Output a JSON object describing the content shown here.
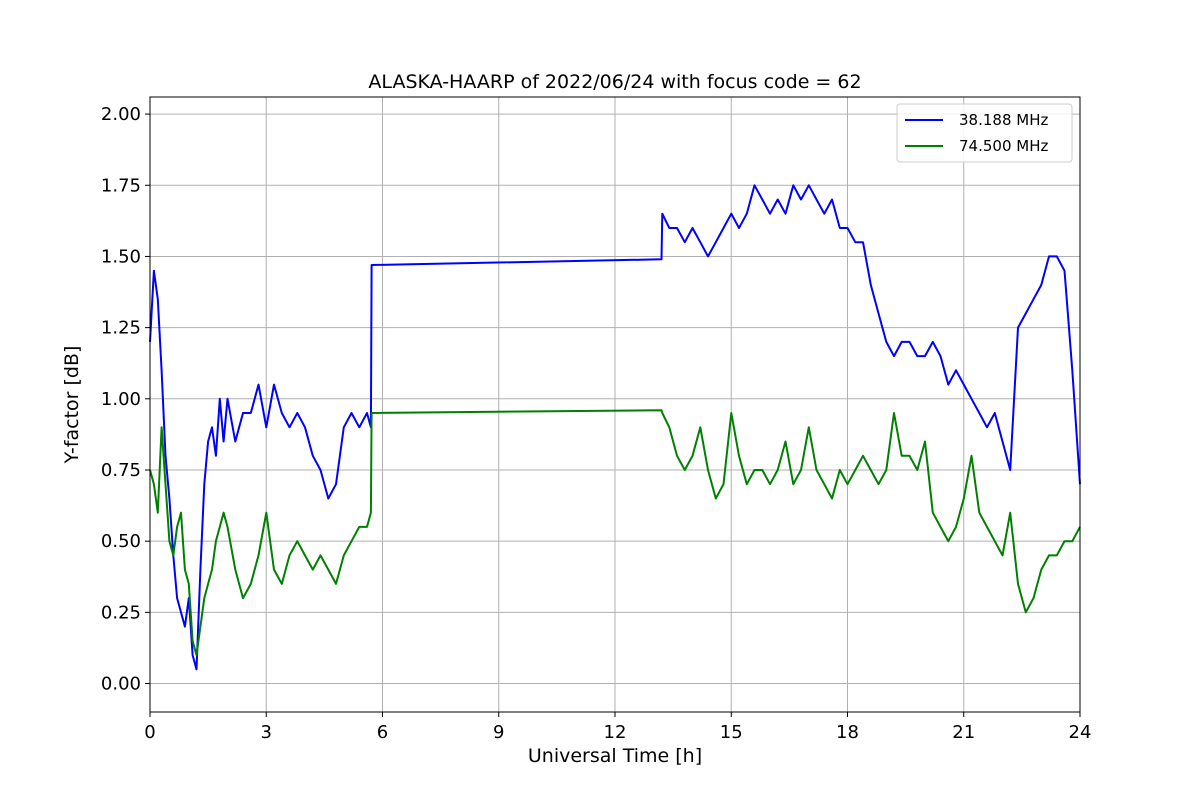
{
  "chart_data": {
    "type": "line",
    "title": "ALASKA-HAARP of 2022/06/24 with focus code = 62",
    "xlabel": "Universal Time [h]",
    "ylabel": "Y-factor [dB]",
    "xlim": [
      0,
      24
    ],
    "ylim": [
      -0.1,
      2.06
    ],
    "x_ticks": [
      0,
      3,
      6,
      9,
      12,
      15,
      18,
      21,
      24
    ],
    "x_tick_labels": [
      "0",
      "3",
      "6",
      "9",
      "12",
      "15",
      "18",
      "21",
      "24"
    ],
    "y_ticks": [
      0.0,
      0.25,
      0.5,
      0.75,
      1.0,
      1.25,
      1.5,
      1.75,
      2.0
    ],
    "y_tick_labels": [
      "0.00",
      "0.25",
      "0.50",
      "0.75",
      "1.00",
      "1.25",
      "1.50",
      "1.75",
      "2.00"
    ],
    "grid": true,
    "legend_position": "top-right",
    "series": [
      {
        "name": "38.188 MHz",
        "color": "#0000ff",
        "x": [
          0.0,
          0.1,
          0.2,
          0.3,
          0.4,
          0.5,
          0.6,
          0.7,
          0.8,
          0.9,
          1.0,
          1.1,
          1.2,
          1.3,
          1.4,
          1.5,
          1.6,
          1.7,
          1.8,
          1.9,
          2.0,
          2.2,
          2.4,
          2.6,
          2.8,
          3.0,
          3.2,
          3.4,
          3.6,
          3.8,
          4.0,
          4.2,
          4.4,
          4.6,
          4.8,
          5.0,
          5.2,
          5.4,
          5.6,
          5.7,
          5.72,
          13.2,
          13.22,
          13.4,
          13.6,
          13.8,
          14.0,
          14.2,
          14.4,
          14.6,
          14.8,
          15.0,
          15.2,
          15.4,
          15.6,
          15.8,
          16.0,
          16.2,
          16.4,
          16.6,
          16.8,
          17.0,
          17.2,
          17.4,
          17.6,
          17.8,
          18.0,
          18.2,
          18.4,
          18.6,
          18.8,
          19.0,
          19.2,
          19.4,
          19.6,
          19.8,
          20.0,
          20.2,
          20.4,
          20.6,
          20.8,
          21.0,
          21.2,
          21.4,
          21.6,
          21.8,
          22.0,
          22.2,
          22.4,
          22.6,
          22.8,
          23.0,
          23.2,
          23.4,
          23.6,
          23.8,
          24.0
        ],
        "y": [
          1.2,
          1.45,
          1.35,
          1.1,
          0.8,
          0.65,
          0.45,
          0.3,
          0.25,
          0.2,
          0.3,
          0.1,
          0.05,
          0.4,
          0.7,
          0.85,
          0.9,
          0.8,
          1.0,
          0.85,
          1.0,
          0.85,
          0.95,
          0.95,
          1.05,
          0.9,
          1.05,
          0.95,
          0.9,
          0.95,
          0.9,
          0.8,
          0.75,
          0.65,
          0.7,
          0.9,
          0.95,
          0.9,
          0.95,
          0.9,
          1.47,
          1.49,
          1.65,
          1.6,
          1.6,
          1.55,
          1.6,
          1.55,
          1.5,
          1.55,
          1.6,
          1.65,
          1.6,
          1.65,
          1.75,
          1.7,
          1.65,
          1.7,
          1.65,
          1.75,
          1.7,
          1.75,
          1.7,
          1.65,
          1.7,
          1.6,
          1.6,
          1.55,
          1.55,
          1.4,
          1.3,
          1.2,
          1.15,
          1.2,
          1.2,
          1.15,
          1.15,
          1.2,
          1.15,
          1.05,
          1.1,
          1.05,
          1.0,
          0.95,
          0.9,
          0.95,
          0.85,
          0.75,
          1.25,
          1.3,
          1.35,
          1.4,
          1.5,
          1.5,
          1.45,
          1.1,
          0.7
        ]
      },
      {
        "name": "74.500 MHz",
        "color": "#008000",
        "x": [
          0.0,
          0.1,
          0.2,
          0.3,
          0.4,
          0.5,
          0.6,
          0.7,
          0.8,
          0.9,
          1.0,
          1.1,
          1.2,
          1.3,
          1.4,
          1.5,
          1.6,
          1.7,
          1.8,
          1.9,
          2.0,
          2.2,
          2.4,
          2.6,
          2.8,
          3.0,
          3.2,
          3.4,
          3.6,
          3.8,
          4.0,
          4.2,
          4.4,
          4.6,
          4.8,
          5.0,
          5.2,
          5.4,
          5.6,
          5.7,
          5.72,
          13.2,
          13.22,
          13.4,
          13.6,
          13.8,
          14.0,
          14.2,
          14.4,
          14.6,
          14.8,
          15.0,
          15.2,
          15.4,
          15.6,
          15.8,
          16.0,
          16.2,
          16.4,
          16.6,
          16.8,
          17.0,
          17.2,
          17.4,
          17.6,
          17.8,
          18.0,
          18.2,
          18.4,
          18.6,
          18.8,
          19.0,
          19.2,
          19.4,
          19.6,
          19.8,
          20.0,
          20.2,
          20.4,
          20.6,
          20.8,
          21.0,
          21.2,
          21.4,
          21.6,
          21.8,
          22.0,
          22.2,
          22.4,
          22.6,
          22.8,
          23.0,
          23.2,
          23.4,
          23.6,
          23.8,
          24.0
        ],
        "y": [
          0.75,
          0.7,
          0.6,
          0.9,
          0.7,
          0.5,
          0.45,
          0.55,
          0.6,
          0.4,
          0.35,
          0.15,
          0.1,
          0.2,
          0.3,
          0.35,
          0.4,
          0.5,
          0.55,
          0.6,
          0.55,
          0.4,
          0.3,
          0.35,
          0.45,
          0.6,
          0.4,
          0.35,
          0.45,
          0.5,
          0.45,
          0.4,
          0.45,
          0.4,
          0.35,
          0.45,
          0.5,
          0.55,
          0.55,
          0.6,
          0.95,
          0.96,
          0.95,
          0.9,
          0.8,
          0.75,
          0.8,
          0.9,
          0.75,
          0.65,
          0.7,
          0.95,
          0.8,
          0.7,
          0.75,
          0.75,
          0.7,
          0.75,
          0.85,
          0.7,
          0.75,
          0.9,
          0.75,
          0.7,
          0.65,
          0.75,
          0.7,
          0.75,
          0.8,
          0.75,
          0.7,
          0.75,
          0.95,
          0.8,
          0.8,
          0.75,
          0.85,
          0.6,
          0.55,
          0.5,
          0.55,
          0.65,
          0.8,
          0.6,
          0.55,
          0.5,
          0.45,
          0.6,
          0.35,
          0.25,
          0.3,
          0.4,
          0.45,
          0.45,
          0.5,
          0.5,
          0.55
        ]
      }
    ]
  }
}
